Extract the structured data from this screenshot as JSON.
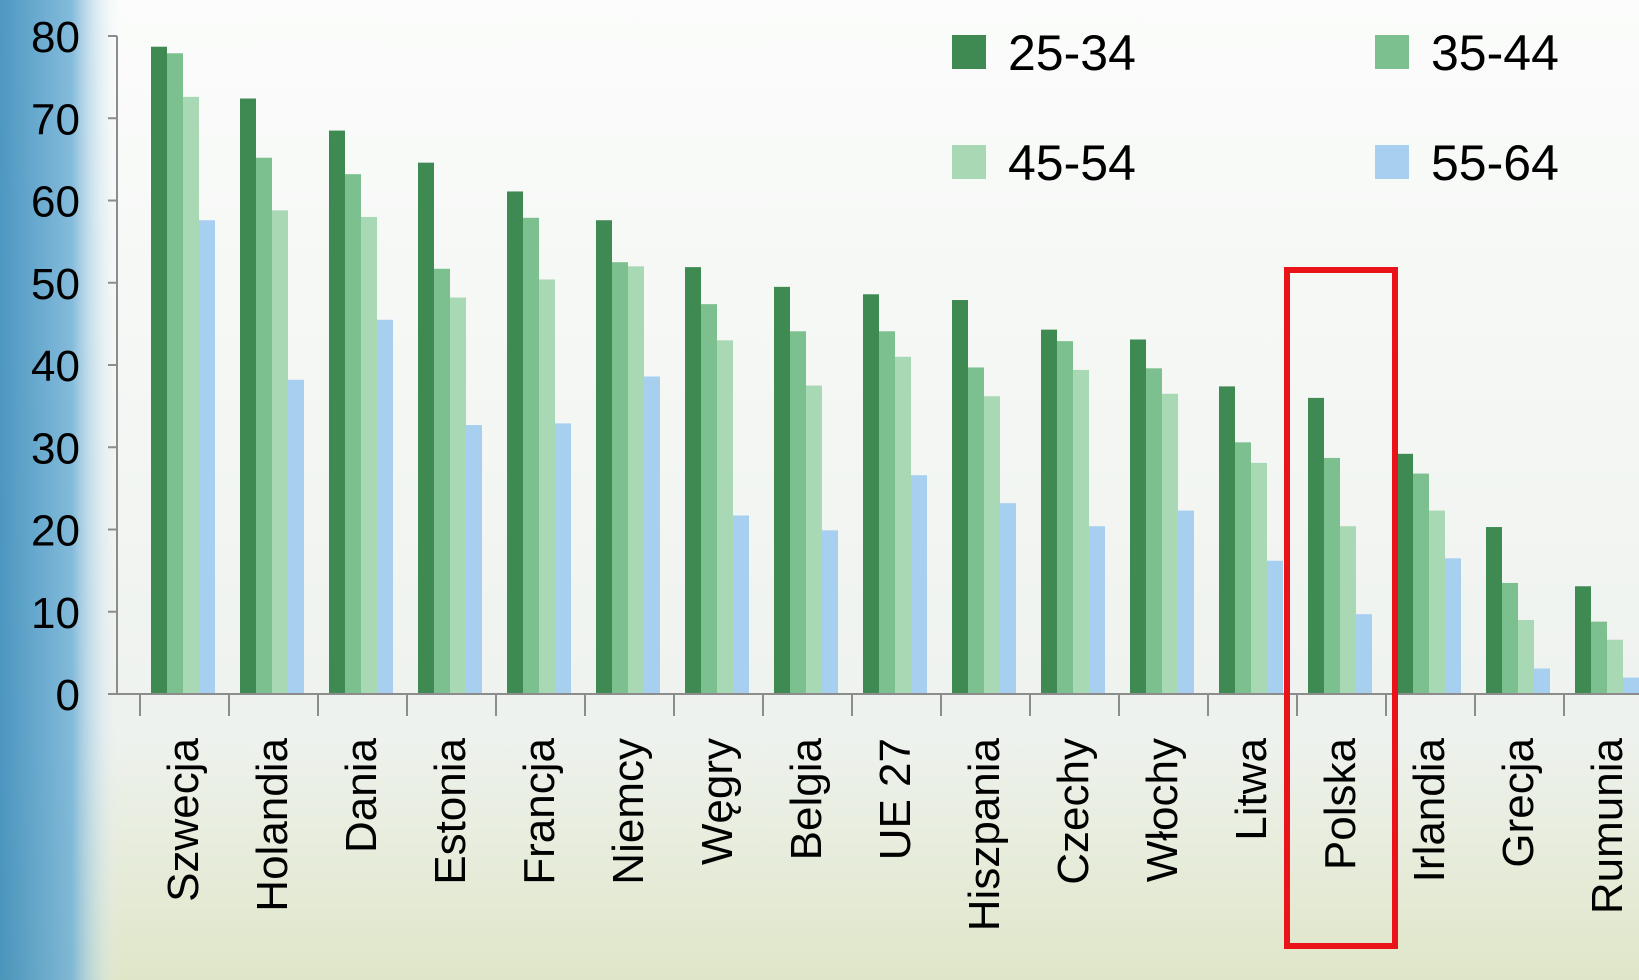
{
  "chart_data": {
    "type": "bar",
    "title": "",
    "xlabel": "",
    "ylabel": "",
    "ylim": [
      0,
      80
    ],
    "yticks": [
      0,
      10,
      20,
      30,
      40,
      50,
      60,
      70,
      80
    ],
    "grid": false,
    "legend": "top-right",
    "categories": [
      "Szwecja",
      "Holandia",
      "Dania",
      "Estonia",
      "Francja",
      "Niemcy",
      "Węgry",
      "Belgia",
      "UE 27",
      "Hiszpania",
      "Czechy",
      "Włochy",
      "Litwa",
      "Polska",
      "Irlandia",
      "Grecja",
      "Rumunia"
    ],
    "series": [
      {
        "name": "25-34",
        "color": "#3e8a52",
        "values": [
          78.7,
          72.4,
          68.5,
          64.6,
          61.1,
          57.6,
          51.9,
          49.5,
          48.6,
          47.9,
          44.3,
          43.1,
          37.4,
          36.0,
          29.2,
          20.3,
          13.1
        ]
      },
      {
        "name": "35-44",
        "color": "#7dc08f",
        "values": [
          77.9,
          65.2,
          63.2,
          51.7,
          57.9,
          52.5,
          47.4,
          44.1,
          44.1,
          39.7,
          42.9,
          39.6,
          30.6,
          28.7,
          26.8,
          13.5,
          8.8
        ]
      },
      {
        "name": "45-54",
        "color": "#a8d8b4",
        "values": [
          72.6,
          58.8,
          58.0,
          48.2,
          50.4,
          52.0,
          43.0,
          37.5,
          41.0,
          36.2,
          39.4,
          36.5,
          28.1,
          20.4,
          22.3,
          9.0,
          6.6
        ]
      },
      {
        "name": "55-64",
        "color": "#a7cfef",
        "values": [
          57.6,
          38.2,
          45.5,
          32.7,
          32.9,
          38.6,
          21.7,
          19.9,
          26.6,
          23.2,
          20.4,
          22.3,
          16.2,
          9.7,
          16.5,
          3.1,
          2.0
        ]
      }
    ],
    "highlight": {
      "category": "Polska",
      "color": "#e8141a"
    }
  }
}
